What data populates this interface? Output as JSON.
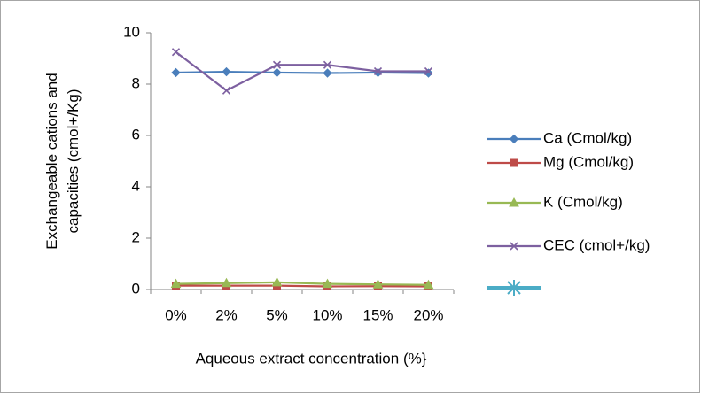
{
  "chart_data": {
    "type": "line",
    "y_label": [
      "Exchangeable cations and",
      "capacities (cmol+/Kg)"
    ],
    "x_label": "Aqueous extract concentration (%}",
    "categories": [
      "0%",
      "2%",
      "5%",
      "10%",
      "15%",
      "20%"
    ],
    "ylim": [
      0,
      10
    ],
    "yticks": [
      0,
      2,
      4,
      6,
      8,
      10
    ],
    "grid": false,
    "legend": "right",
    "series": [
      {
        "name": "Ca (Cmol/kg)",
        "color": "#4a7ebb",
        "marker": "diamond",
        "values": [
          8.45,
          8.48,
          8.45,
          8.43,
          8.45,
          8.43
        ]
      },
      {
        "name": "Mg (Cmol/kg)",
        "color": "#be4b48",
        "marker": "square",
        "values": [
          0.15,
          0.15,
          0.15,
          0.12,
          0.13,
          0.12
        ]
      },
      {
        "name": "K (Cmol/kg)",
        "color": "#98b954",
        "marker": "triangle",
        "values": [
          0.22,
          0.25,
          0.28,
          0.22,
          0.2,
          0.18
        ]
      },
      {
        "name": "CEC (cmol+/kg)",
        "color": "#7d60a0",
        "marker": "x",
        "values": [
          9.25,
          7.75,
          8.75,
          8.75,
          8.5,
          8.5
        ]
      }
    ]
  }
}
